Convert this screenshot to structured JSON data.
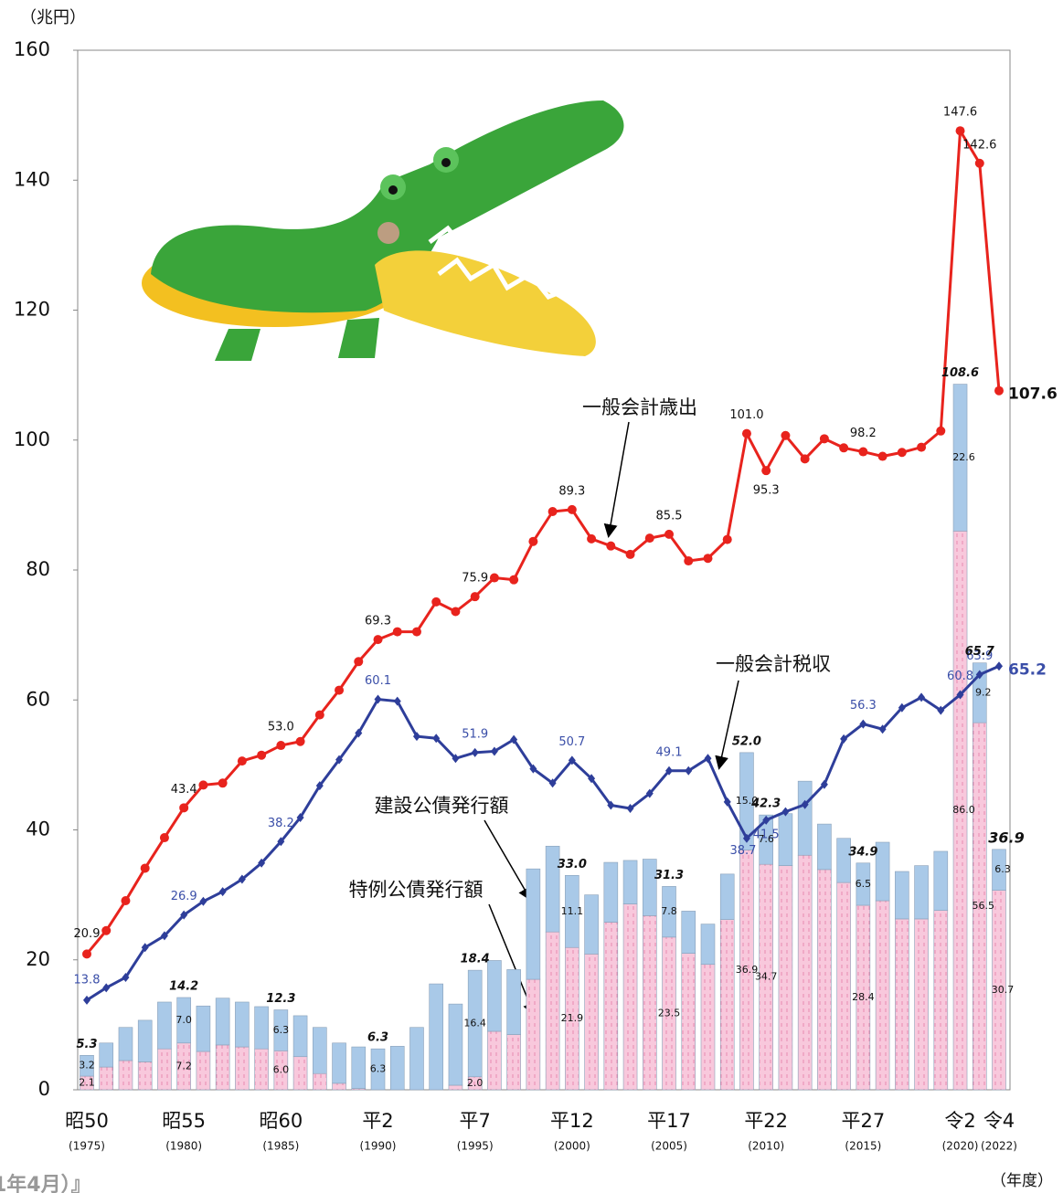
{
  "chart_data": {
    "type": "combo",
    "y_unit": "（兆円）",
    "x_unit": "（年度）",
    "footer": "1年4月）』",
    "categories": [
      "昭50",
      null,
      null,
      null,
      null,
      "昭55",
      null,
      null,
      null,
      null,
      "昭60",
      null,
      null,
      null,
      null,
      "平2",
      null,
      null,
      null,
      null,
      "平7",
      null,
      null,
      null,
      null,
      "平12",
      null,
      null,
      null,
      null,
      "平17",
      null,
      null,
      null,
      null,
      "平22",
      null,
      null,
      null,
      null,
      "平27",
      null,
      null,
      null,
      null,
      "令2",
      null,
      "令4"
    ],
    "category_years": [
      "(1975)",
      null,
      null,
      null,
      null,
      "(1980)",
      null,
      null,
      null,
      null,
      "(1985)",
      null,
      null,
      null,
      null,
      "(1990)",
      null,
      null,
      null,
      null,
      "(1995)",
      null,
      null,
      null,
      null,
      "(2000)",
      null,
      null,
      null,
      null,
      "(2005)",
      null,
      null,
      null,
      null,
      "(2010)",
      null,
      null,
      null,
      null,
      "(2015)",
      null,
      null,
      null,
      null,
      "(2020)",
      null,
      "(2022)"
    ],
    "ylim": [
      0,
      160
    ],
    "yticks": [
      0,
      20,
      40,
      60,
      80,
      100,
      120,
      140,
      160
    ],
    "series": [
      {
        "name": "特例公債発行額",
        "type": "bar",
        "stack": "bonds",
        "color": "#f8c8dc",
        "values": [
          2.1,
          3.5,
          4.5,
          4.3,
          6.3,
          7.2,
          5.9,
          6.9,
          6.6,
          6.3,
          6.0,
          5.1,
          2.5,
          1.0,
          0.2,
          0,
          0,
          0,
          0,
          0.7,
          2.0,
          9.0,
          8.5,
          17.0,
          24.3,
          21.9,
          20.9,
          25.8,
          28.6,
          26.8,
          23.5,
          21.0,
          19.3,
          26.2,
          36.9,
          34.7,
          34.5,
          36.1,
          33.9,
          31.9,
          28.4,
          29.1,
          26.3,
          26.3,
          27.6,
          86.0,
          56.5,
          30.7
        ],
        "value_labels": [
          "2.1",
          null,
          null,
          null,
          null,
          "7.2",
          null,
          null,
          null,
          null,
          "6.0",
          null,
          null,
          null,
          null,
          null,
          null,
          null,
          null,
          null,
          "2.0",
          null,
          null,
          null,
          null,
          "21.9",
          null,
          null,
          null,
          null,
          "23.5",
          null,
          null,
          null,
          "36.9",
          "34.7",
          null,
          null,
          null,
          null,
          "28.4",
          null,
          null,
          null,
          null,
          "86.0",
          "56.5",
          "30.7"
        ]
      },
      {
        "name": "建設公債発行額",
        "type": "bar",
        "stack": "bonds",
        "color": "#a9c9e8",
        "values": [
          3.2,
          3.7,
          5.1,
          6.4,
          7.2,
          7.0,
          7.0,
          7.2,
          6.9,
          6.5,
          6.3,
          6.3,
          7.1,
          6.2,
          6.4,
          6.3,
          6.7,
          9.6,
          16.3,
          12.5,
          16.4,
          10.9,
          10.0,
          17.0,
          13.2,
          11.1,
          9.1,
          9.2,
          6.7,
          8.7,
          7.8,
          6.5,
          6.2,
          7.0,
          15.0,
          7.6,
          8.0,
          11.4,
          7.0,
          6.8,
          6.5,
          9.0,
          7.3,
          8.2,
          9.1,
          22.6,
          9.2,
          6.3
        ],
        "value_labels": [
          "3.2",
          null,
          null,
          null,
          null,
          "7.0",
          null,
          null,
          null,
          null,
          "6.3",
          null,
          null,
          null,
          null,
          "6.3",
          null,
          null,
          null,
          null,
          "16.4",
          null,
          null,
          null,
          null,
          "11.1",
          null,
          null,
          null,
          null,
          "7.8",
          null,
          null,
          null,
          "15.0",
          "7.6",
          null,
          null,
          null,
          null,
          "6.5",
          null,
          null,
          null,
          null,
          "22.6",
          "9.2",
          "6.3"
        ]
      },
      {
        "name": "一般会計歳出",
        "type": "line",
        "marker": "circle",
        "color": "#e8231d",
        "values": [
          20.9,
          24.5,
          29.1,
          34.1,
          38.8,
          43.4,
          46.9,
          47.2,
          50.6,
          51.5,
          53.0,
          53.6,
          57.7,
          61.5,
          65.9,
          69.3,
          70.5,
          70.5,
          75.1,
          73.6,
          75.9,
          78.8,
          78.5,
          84.4,
          89.0,
          89.3,
          84.8,
          83.7,
          82.4,
          84.9,
          85.5,
          81.4,
          81.8,
          84.7,
          101.0,
          95.3,
          100.7,
          97.1,
          100.2,
          98.8,
          98.2,
          97.5,
          98.1,
          98.9,
          101.4,
          147.6,
          142.6,
          107.6
        ],
        "value_labels": [
          "20.9",
          null,
          null,
          null,
          null,
          "43.4",
          null,
          null,
          null,
          null,
          "53.0",
          null,
          null,
          null,
          null,
          "69.3",
          null,
          null,
          null,
          null,
          "75.9",
          null,
          null,
          null,
          null,
          "89.3",
          null,
          null,
          null,
          null,
          "85.5",
          null,
          null,
          null,
          "101.0",
          "95.3",
          null,
          null,
          null,
          null,
          "98.2",
          null,
          null,
          null,
          null,
          "147.6",
          "142.6",
          "107.6"
        ]
      },
      {
        "name": "一般会計税収",
        "type": "line",
        "marker": "diamond",
        "color": "#2e3e9a",
        "values": [
          13.8,
          15.7,
          17.3,
          21.9,
          23.7,
          26.9,
          29.0,
          30.5,
          32.4,
          34.9,
          38.2,
          41.9,
          46.8,
          50.8,
          54.9,
          60.1,
          59.8,
          54.4,
          54.1,
          51.0,
          51.9,
          52.1,
          53.9,
          49.4,
          47.2,
          50.7,
          47.9,
          43.8,
          43.3,
          45.6,
          49.1,
          49.1,
          51.0,
          44.3,
          38.7,
          41.5,
          42.8,
          43.9,
          47.0,
          54.0,
          56.3,
          55.5,
          58.8,
          60.4,
          58.4,
          60.8,
          63.9,
          65.2
        ],
        "value_labels": [
          "13.8",
          null,
          null,
          null,
          null,
          "26.9",
          null,
          null,
          null,
          null,
          "38.2",
          null,
          null,
          null,
          null,
          "60.1",
          null,
          null,
          null,
          null,
          "51.9",
          null,
          null,
          null,
          null,
          "50.7",
          null,
          null,
          null,
          null,
          "49.1",
          null,
          null,
          null,
          "38.7",
          "41.5",
          null,
          null,
          null,
          null,
          "56.3",
          null,
          null,
          null,
          null,
          "60.8",
          "63.9",
          "65.2"
        ]
      }
    ],
    "bar_total_labels": [
      "5.3",
      null,
      null,
      null,
      null,
      "14.2",
      null,
      null,
      null,
      null,
      "12.3",
      null,
      null,
      null,
      null,
      "6.3",
      null,
      null,
      null,
      null,
      "18.4",
      null,
      null,
      null,
      null,
      "33.0",
      null,
      null,
      null,
      null,
      "31.3",
      null,
      null,
      null,
      "52.0",
      "42.3",
      null,
      null,
      null,
      null,
      "34.9",
      null,
      null,
      null,
      null,
      "108.6",
      "65.7",
      "36.9"
    ]
  }
}
